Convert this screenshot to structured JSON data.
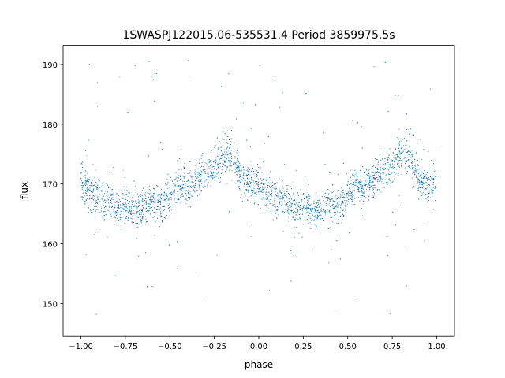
{
  "chart_data": {
    "type": "scatter",
    "title": "1SWASPJ122015.06-535531.4 Period 3859975.5s",
    "xlabel": "phase",
    "ylabel": "flux",
    "xlim": [
      -1.1,
      1.1
    ],
    "ylim": [
      144.5,
      193.2
    ],
    "xticks": [
      -1.0,
      -0.75,
      -0.5,
      -0.25,
      0.0,
      0.25,
      0.5,
      0.75,
      1.0
    ],
    "xtick_labels": [
      "−1.00",
      "−0.75",
      "−0.50",
      "−0.25",
      "0.00",
      "0.25",
      "0.50",
      "0.75",
      "1.00"
    ],
    "yticks": [
      150,
      160,
      170,
      180,
      190
    ],
    "ytick_labels": [
      "150",
      "160",
      "170",
      "180",
      "190"
    ],
    "grid": false,
    "legend": "none",
    "point_color": "#1f77b4",
    "series": [
      {
        "x": [
          -1.0,
          -0.95,
          -0.9,
          -0.85,
          -0.8,
          -0.75,
          -0.7,
          -0.65,
          -0.6,
          -0.55,
          -0.5,
          -0.45,
          -0.4,
          -0.35,
          -0.3,
          -0.25,
          -0.2,
          -0.15,
          -0.1,
          -0.05,
          0.0,
          0.05,
          0.1,
          0.15,
          0.2,
          0.25,
          0.3,
          0.35,
          0.4,
          0.45,
          0.5,
          0.55,
          0.6,
          0.65,
          0.7,
          0.75,
          0.8,
          0.85,
          0.9,
          0.95,
          1.0
        ],
        "y": [
          171.0,
          168.5,
          168.0,
          167.5,
          166.0,
          166.5,
          165.5,
          166.0,
          167.0,
          166.5,
          168.0,
          170.0,
          169.5,
          170.5,
          172.0,
          173.0,
          175.0,
          174.5,
          171.0,
          170.0,
          170.0,
          169.0,
          168.0,
          167.0,
          166.0,
          166.5,
          165.5,
          166.0,
          167.0,
          166.5,
          168.0,
          170.0,
          169.5,
          170.5,
          172.0,
          173.0,
          175.0,
          174.5,
          171.0,
          169.5,
          171.0
        ]
      }
    ]
  }
}
